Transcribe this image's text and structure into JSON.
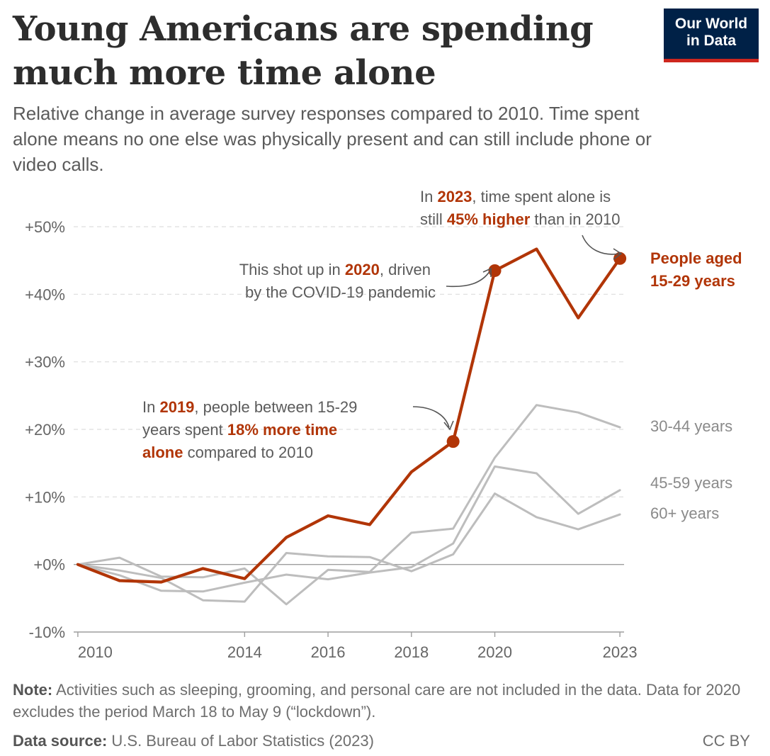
{
  "header": {
    "title_line1": "Young Americans are spending",
    "title_line2": "much more time alone",
    "subtitle": "Relative change in average survey responses compared to 2010. Time spent alone means no one else was physically present and can still include phone or video calls."
  },
  "logo": {
    "line1": "Our World",
    "line2": "in Data"
  },
  "colors": {
    "highlight": "#b13507",
    "muted": "#bdbdbd",
    "grid": "#dddddd",
    "axis_text": "#666666",
    "logo_bg": "#002147",
    "logo_bar": "#ce261e"
  },
  "chart_data": {
    "type": "line",
    "ylim": [
      -10,
      50
    ],
    "y_ticks": [
      -10,
      0,
      10,
      20,
      30,
      40,
      50
    ],
    "y_tick_labels": [
      "-10%",
      "+0%",
      "+10%",
      "+20%",
      "+30%",
      "+40%",
      "+50%"
    ],
    "x_ticks": [
      2010,
      2014,
      2016,
      2018,
      2020,
      2023
    ],
    "x_tick_labels": [
      "2010",
      "2014",
      "2016",
      "2018",
      "2020",
      "2023"
    ],
    "xlim": [
      2009.9,
      2023.1
    ],
    "series": [
      {
        "name": "People aged 15-29 years",
        "highlight": true,
        "x": [
          2010,
          2011,
          2012,
          2013,
          2014,
          2015,
          2016,
          2017,
          2018,
          2019,
          2020,
          2021,
          2022,
          2023
        ],
        "values": [
          0,
          -2.4,
          -2.6,
          -0.6,
          -2.1,
          4.0,
          7.2,
          5.9,
          13.7,
          18.2,
          43.5,
          46.7,
          36.5,
          45.3
        ]
      },
      {
        "name": "30-44 years",
        "x": [
          2010,
          2011,
          2012,
          2013,
          2014,
          2015,
          2016,
          2017,
          2018,
          2019,
          2020,
          2021,
          2022,
          2023
        ],
        "values": [
          0,
          1.0,
          -1.8,
          -1.9,
          -0.6,
          -5.9,
          -0.8,
          -1.1,
          4.7,
          5.3,
          15.8,
          23.6,
          22.5,
          20.3
        ]
      },
      {
        "name": "45-59 years",
        "x": [
          2010,
          2011,
          2012,
          2013,
          2014,
          2015,
          2016,
          2017,
          2018,
          2019,
          2020,
          2021,
          2022,
          2023
        ],
        "values": [
          0,
          -1.6,
          -3.9,
          -4.0,
          -2.7,
          -1.5,
          -2.2,
          -1.2,
          -0.4,
          3.1,
          14.5,
          13.5,
          7.5,
          11.0
        ]
      },
      {
        "name": "60+ years",
        "x": [
          2010,
          2011,
          2012,
          2013,
          2014,
          2015,
          2016,
          2017,
          2018,
          2019,
          2020,
          2021,
          2022,
          2023
        ],
        "values": [
          0,
          -0.9,
          -2.0,
          -5.3,
          -5.5,
          1.7,
          1.2,
          1.1,
          -1.0,
          1.5,
          10.5,
          7.0,
          5.2,
          7.4
        ]
      }
    ],
    "labels": {
      "highlight_line1": "People aged",
      "highlight_line2": "15-29 years",
      "s30": "30-44 years",
      "s45": "45-59 years",
      "s60": "60+ years"
    },
    "annotations": {
      "a2023_l1_a": "In ",
      "a2023_l1_b": "2023",
      "a2023_l1_c": ", time spent alone is",
      "a2023_l2_a": "still ",
      "a2023_l2_b": "45% higher",
      "a2023_l2_c": " than in 2010",
      "a2020_l1_a": "This shot up in ",
      "a2020_l1_b": "2020",
      "a2020_l1_c": ", driven",
      "a2020_l2": "by the COVID-19 pandemic",
      "a2019_l1_a": "In ",
      "a2019_l1_b": "2019",
      "a2019_l1_c": ", people between 15-29",
      "a2019_l2_a": "years spent ",
      "a2019_l2_b": "18% more time",
      "a2019_l3_a": "alone",
      "a2019_l3_b": " compared to 2010"
    }
  },
  "footer": {
    "note_label": "Note:",
    "note_text": " Activities such as sleeping, grooming, and personal care are not included in the data. Data for 2020 excludes the period March 18 to May 9 (“lockdown”).",
    "source_label": "Data source:",
    "source_text": " U.S. Bureau of Labor Statistics (2023)",
    "license": "CC BY"
  }
}
